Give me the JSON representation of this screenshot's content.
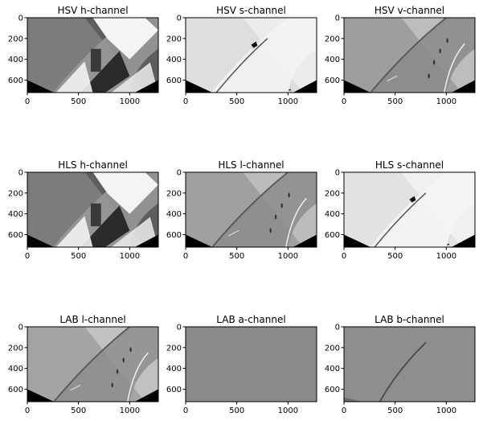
{
  "figure": {
    "background": "#ffffff",
    "text_color": "#000000"
  },
  "chart_data": [
    {
      "type": "image",
      "title": "HSV h-channel",
      "channel": "HSV-H",
      "xlim": [
        0,
        1280
      ],
      "ylim": [
        720,
        0
      ],
      "xticks": [
        {
          "value": 0,
          "label": "0"
        },
        {
          "value": 500,
          "label": "500"
        },
        {
          "value": 1000,
          "label": "1000"
        }
      ],
      "yticks": [
        {
          "value": 0,
          "label": "0"
        },
        {
          "value": 200,
          "label": "200"
        },
        {
          "value": 400,
          "label": "400"
        },
        {
          "value": 600,
          "label": "600"
        }
      ]
    },
    {
      "type": "image",
      "title": "HSV s-channel",
      "channel": "HSV-S",
      "xlim": [
        0,
        1280
      ],
      "ylim": [
        720,
        0
      ],
      "xticks": [
        {
          "value": 0,
          "label": "0"
        },
        {
          "value": 500,
          "label": "500"
        },
        {
          "value": 1000,
          "label": "1000"
        }
      ],
      "yticks": [
        {
          "value": 0,
          "label": "0"
        },
        {
          "value": 200,
          "label": "200"
        },
        {
          "value": 400,
          "label": "400"
        },
        {
          "value": 600,
          "label": "600"
        }
      ]
    },
    {
      "type": "image",
      "title": "HSV v-channel",
      "channel": "HSV-V",
      "xlim": [
        0,
        1280
      ],
      "ylim": [
        720,
        0
      ],
      "xticks": [
        {
          "value": 0,
          "label": "0"
        },
        {
          "value": 500,
          "label": "500"
        },
        {
          "value": 1000,
          "label": "1000"
        }
      ],
      "yticks": [
        {
          "value": 0,
          "label": "0"
        },
        {
          "value": 200,
          "label": "200"
        },
        {
          "value": 400,
          "label": "400"
        },
        {
          "value": 600,
          "label": "600"
        }
      ]
    },
    {
      "type": "image",
      "title": "HLS h-channel",
      "channel": "HLS-H",
      "xlim": [
        0,
        1280
      ],
      "ylim": [
        720,
        0
      ],
      "xticks": [
        {
          "value": 0,
          "label": "0"
        },
        {
          "value": 500,
          "label": "500"
        },
        {
          "value": 1000,
          "label": "1000"
        }
      ],
      "yticks": [
        {
          "value": 0,
          "label": "0"
        },
        {
          "value": 200,
          "label": "200"
        },
        {
          "value": 400,
          "label": "400"
        },
        {
          "value": 600,
          "label": "600"
        }
      ]
    },
    {
      "type": "image",
      "title": "HLS l-channel",
      "channel": "HLS-L",
      "xlim": [
        0,
        1280
      ],
      "ylim": [
        720,
        0
      ],
      "xticks": [
        {
          "value": 0,
          "label": "0"
        },
        {
          "value": 500,
          "label": "500"
        },
        {
          "value": 1000,
          "label": "1000"
        }
      ],
      "yticks": [
        {
          "value": 0,
          "label": "0"
        },
        {
          "value": 200,
          "label": "200"
        },
        {
          "value": 400,
          "label": "400"
        },
        {
          "value": 600,
          "label": "600"
        }
      ]
    },
    {
      "type": "image",
      "title": "HLS s-channel",
      "channel": "HLS-S",
      "xlim": [
        0,
        1280
      ],
      "ylim": [
        720,
        0
      ],
      "xticks": [
        {
          "value": 0,
          "label": "0"
        },
        {
          "value": 500,
          "label": "500"
        },
        {
          "value": 1000,
          "label": "1000"
        }
      ],
      "yticks": [
        {
          "value": 0,
          "label": "0"
        },
        {
          "value": 200,
          "label": "200"
        },
        {
          "value": 400,
          "label": "400"
        },
        {
          "value": 600,
          "label": "600"
        }
      ]
    },
    {
      "type": "image",
      "title": "LAB l-channel",
      "channel": "LAB-L",
      "xlim": [
        0,
        1280
      ],
      "ylim": [
        720,
        0
      ],
      "xticks": [
        {
          "value": 0,
          "label": "0"
        },
        {
          "value": 500,
          "label": "500"
        },
        {
          "value": 1000,
          "label": "1000"
        }
      ],
      "yticks": [
        {
          "value": 0,
          "label": "0"
        },
        {
          "value": 200,
          "label": "200"
        },
        {
          "value": 400,
          "label": "400"
        },
        {
          "value": 600,
          "label": "600"
        }
      ]
    },
    {
      "type": "image",
      "title": "LAB a-channel",
      "channel": "LAB-A",
      "xlim": [
        0,
        1280
      ],
      "ylim": [
        720,
        0
      ],
      "xticks": [
        {
          "value": 0,
          "label": "0"
        },
        {
          "value": 500,
          "label": "500"
        },
        {
          "value": 1000,
          "label": "1000"
        }
      ],
      "yticks": [
        {
          "value": 0,
          "label": "0"
        },
        {
          "value": 200,
          "label": "200"
        },
        {
          "value": 400,
          "label": "400"
        },
        {
          "value": 600,
          "label": "600"
        }
      ]
    },
    {
      "type": "image",
      "title": "LAB b-channel",
      "channel": "LAB-B",
      "xlim": [
        0,
        1280
      ],
      "ylim": [
        720,
        0
      ],
      "xticks": [
        {
          "value": 0,
          "label": "0"
        },
        {
          "value": 500,
          "label": "500"
        },
        {
          "value": 1000,
          "label": "1000"
        }
      ],
      "yticks": [
        {
          "value": 0,
          "label": "0"
        },
        {
          "value": 200,
          "label": "200"
        },
        {
          "value": 400,
          "label": "400"
        },
        {
          "value": 600,
          "label": "600"
        }
      ]
    }
  ]
}
